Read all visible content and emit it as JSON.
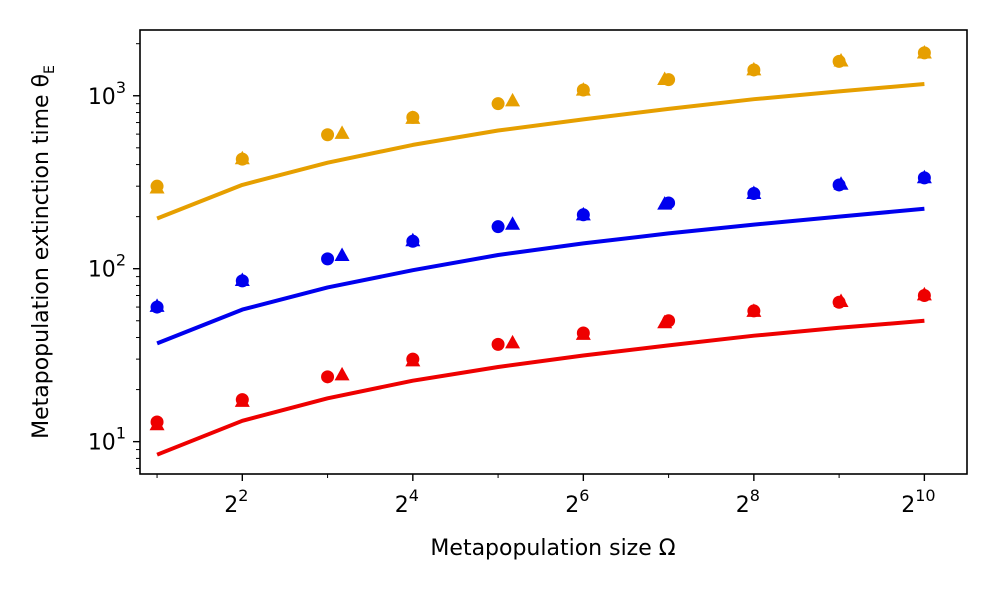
{
  "chart_data": {
    "type": "line",
    "title": "",
    "xlabel": "Metapopulation size Ω",
    "ylabel_main": "Metapopulation extinction time θ",
    "ylabel_sub": "E",
    "xscale": "log2",
    "yscale": "log10",
    "xlim_exp": [
      0.8,
      10.5
    ],
    "ylim": [
      6.5,
      2400
    ],
    "x_ticks": [
      {
        "base": "2",
        "exp": "2",
        "value": 4
      },
      {
        "base": "2",
        "exp": "4",
        "value": 16
      },
      {
        "base": "2",
        "exp": "6",
        "value": 64
      },
      {
        "base": "2",
        "exp": "8",
        "value": 256
      },
      {
        "base": "2",
        "exp": "10",
        "value": 1024
      }
    ],
    "y_ticks": [
      {
        "base": "10",
        "exp": "1",
        "value": 10
      },
      {
        "base": "10",
        "exp": "2",
        "value": 100
      },
      {
        "base": "10",
        "exp": "3",
        "value": 1000
      }
    ],
    "x": [
      2,
      4,
      8,
      16,
      32,
      64,
      128,
      256,
      512,
      1024
    ],
    "series": [
      {
        "name": "orange",
        "color": "#E69F00",
        "line": [
          195,
          305,
          410,
          520,
          630,
          730,
          840,
          955,
          1060,
          1170
        ],
        "circles": [
          300,
          430,
          595,
          750,
          900,
          1080,
          1240,
          1410,
          1580,
          1770
        ],
        "triangles_x": [
          2,
          4,
          9,
          16,
          36,
          64,
          124,
          256,
          520,
          1024
        ],
        "triangles": [
          295,
          435,
          610,
          745,
          940,
          1085,
          1250,
          1420,
          1600,
          1780
        ]
      },
      {
        "name": "blue",
        "color": "#0000EE",
        "line": [
          37,
          58,
          78,
          98,
          120,
          140,
          160,
          180,
          200,
          222
        ],
        "circles": [
          60,
          85,
          114,
          144,
          175,
          205,
          240,
          272,
          305,
          335
        ],
        "triangles_x": [
          2,
          4,
          9,
          16,
          36,
          64,
          124,
          256,
          520,
          1024
        ],
        "triangles": [
          61,
          86,
          120,
          146,
          182,
          206,
          238,
          274,
          310,
          338
        ]
      },
      {
        "name": "red",
        "color": "#EE0000",
        "line": [
          8.4,
          13.2,
          17.8,
          22.5,
          27,
          31.5,
          36,
          41,
          45.5,
          50
        ],
        "circles": [
          13,
          17.5,
          23.7,
          30,
          36.5,
          42.5,
          50,
          57,
          64,
          70
        ],
        "triangles_x": [
          2,
          4,
          9,
          16,
          36,
          64,
          124,
          256,
          520,
          1024
        ],
        "triangles": [
          12.6,
          17.2,
          24.5,
          29.5,
          37.5,
          42,
          49,
          57,
          65,
          71
        ]
      }
    ]
  }
}
